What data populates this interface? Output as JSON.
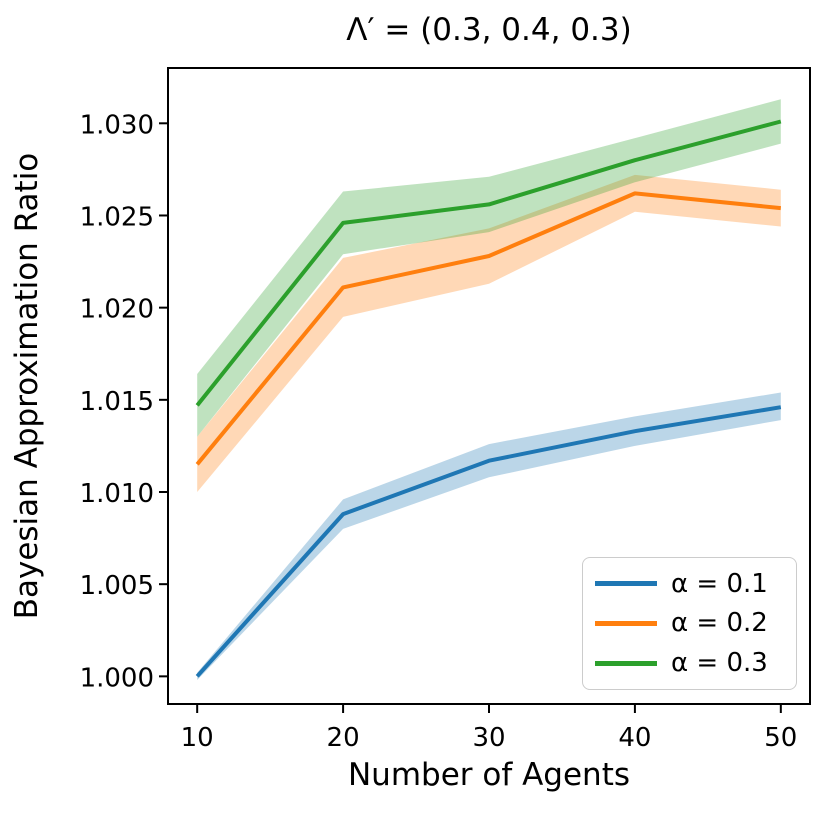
{
  "chart_data": {
    "type": "line",
    "title": "Λ′ = (0.3, 0.4, 0.3)",
    "xlabel": "Number of Agents",
    "ylabel": "Bayesian Approximation Ratio",
    "x": [
      10,
      20,
      30,
      40,
      50
    ],
    "xlim": [
      8,
      52
    ],
    "ylim": [
      0.9985,
      1.033
    ],
    "xticks": [
      "10",
      "20",
      "30",
      "40",
      "50"
    ],
    "xtick_values": [
      10,
      20,
      30,
      40,
      50
    ],
    "yticks": [
      "1.000",
      "1.005",
      "1.010",
      "1.015",
      "1.020",
      "1.025",
      "1.030"
    ],
    "ytick_values": [
      1.0,
      1.005,
      1.01,
      1.015,
      1.02,
      1.025,
      1.03
    ],
    "grid": false,
    "legend_position": "lower right",
    "band_alpha": 0.3,
    "series": [
      {
        "name": "α = 0.1",
        "color": "#1f77b4",
        "values": [
          1.0,
          1.0088,
          1.0117,
          1.0133,
          1.0146
        ],
        "band_upper": [
          1.0002,
          1.0096,
          1.0126,
          1.0141,
          1.0154
        ],
        "band_lower": [
          0.9998,
          1.008,
          1.0108,
          1.0125,
          1.0139
        ]
      },
      {
        "name": "α = 0.2",
        "color": "#ff7f0e",
        "values": [
          1.0115,
          1.0211,
          1.0228,
          1.0262,
          1.0254
        ],
        "band_upper": [
          1.013,
          1.0227,
          1.0243,
          1.0272,
          1.0264
        ],
        "band_lower": [
          1.01,
          1.0195,
          1.0213,
          1.0252,
          1.0244
        ]
      },
      {
        "name": "α = 0.3",
        "color": "#2ca02c",
        "values": [
          1.0147,
          1.0246,
          1.0256,
          1.028,
          1.0301
        ],
        "band_upper": [
          1.0164,
          1.0263,
          1.0271,
          1.0292,
          1.0313
        ],
        "band_lower": [
          1.013,
          1.0229,
          1.0241,
          1.0268,
          1.0289
        ]
      }
    ]
  }
}
